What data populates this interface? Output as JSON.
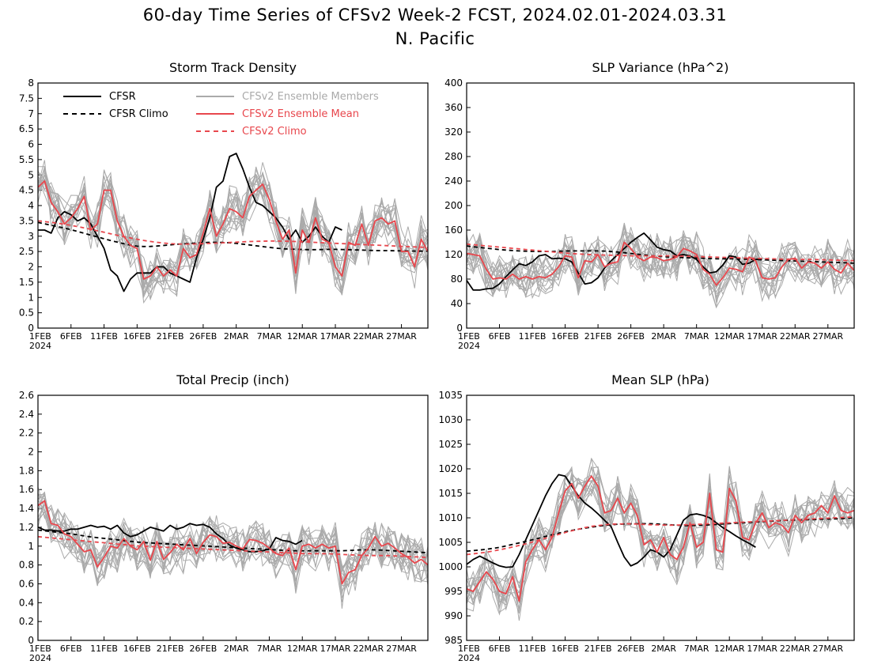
{
  "header": {
    "title": "60-day Time Series of CFSv2 Week-2 FCST, 2024.02.01-2024.03.31",
    "subtitle": "N. Pacific"
  },
  "legend": {
    "cfsr": "CFSR",
    "cfsr_climo": "CFSR Climo",
    "members": "CFSv2 Ensemble Members",
    "ens_mean": "CFSv2 Ensemble Mean",
    "cfsv2_climo": "CFSv2 Climo"
  },
  "colors": {
    "cfsr": "#000000",
    "members": "#aaaaaa",
    "ens_mean": "#e8474d",
    "cfsv2_climo": "#e8474d",
    "axis": "#000000"
  },
  "chart_data": [
    {
      "type": "line",
      "title": "Storm Track Density",
      "x_range": [
        "2024-02-01",
        "2024-03-31"
      ],
      "x_ticks": [
        "1FEB",
        "6FEB",
        "11FEB",
        "16FEB",
        "21FEB",
        "26FEB",
        "2MAR",
        "7MAR",
        "12MAR",
        "17MAR",
        "22MAR",
        "27MAR"
      ],
      "x_year_label": "2024",
      "ylim": [
        0,
        8
      ],
      "y_ticks": [
        "0",
        "0.5",
        "1",
        "1.5",
        "2",
        "2.5",
        "3",
        "3.5",
        "4",
        "4.5",
        "5",
        "5.5",
        "6",
        "6.5",
        "7",
        "7.5",
        "8"
      ],
      "series": [
        {
          "name": "CFSR",
          "style": "solid-black",
          "values": [
            3.2,
            3.2,
            3.1,
            3.6,
            3.8,
            3.7,
            3.5,
            3.6,
            3.4,
            3.0,
            2.6,
            1.9,
            1.7,
            1.2,
            1.6,
            1.8,
            1.8,
            1.8,
            2.0,
            2.0,
            1.8,
            1.7,
            1.6,
            1.5,
            2.3,
            2.9,
            3.6,
            4.6,
            4.8,
            5.6,
            5.7,
            5.2,
            4.6,
            4.1,
            4.0,
            3.8,
            3.6,
            3.3,
            2.9,
            3.2,
            2.8,
            3.0,
            3.3,
            3.0,
            2.8,
            3.3,
            3.2
          ]
        },
        {
          "name": "CFSR Climo",
          "style": "dashed-black",
          "values": [
            3.45,
            3.38,
            3.31,
            3.24,
            3.15,
            3.06,
            2.97,
            2.88,
            2.8,
            2.72,
            2.67,
            2.66,
            2.68,
            2.71,
            2.74,
            2.76,
            2.78,
            2.8,
            2.8,
            2.79,
            2.76,
            2.72,
            2.68,
            2.64,
            2.6,
            2.58,
            2.57,
            2.56,
            2.56,
            2.57,
            2.57,
            2.56,
            2.55,
            2.54,
            2.53,
            2.53,
            2.52,
            2.52,
            2.51,
            2.51
          ]
        },
        {
          "name": "CFSv2 Ensemble Mean",
          "style": "solid-red",
          "values": [
            4.6,
            4.8,
            4.1,
            3.8,
            3.4,
            3.6,
            3.9,
            4.3,
            3.2,
            3.4,
            4.5,
            4.5,
            3.5,
            3.0,
            2.7,
            2.6,
            1.6,
            1.7,
            2.0,
            1.7,
            1.9,
            1.7,
            2.6,
            2.3,
            2.4,
            3.1,
            3.9,
            3.0,
            3.4,
            3.9,
            3.8,
            3.6,
            4.3,
            4.5,
            4.7,
            4.2,
            3.5,
            2.9,
            3.2,
            1.8,
            3.2,
            2.8,
            3.6,
            2.9,
            2.8,
            2.0,
            1.7,
            2.8,
            2.7,
            3.4,
            2.7,
            3.5,
            3.6,
            3.4,
            3.5,
            2.5,
            2.5,
            2.0,
            2.9,
            2.5
          ]
        },
        {
          "name": "CFSv2 Climo",
          "style": "dashed-red",
          "values": [
            3.5,
            3.45,
            3.39,
            3.31,
            3.22,
            3.12,
            3.02,
            2.93,
            2.85,
            2.79,
            2.75,
            2.74,
            2.75,
            2.77,
            2.79,
            2.81,
            2.83,
            2.84,
            2.84,
            2.83,
            2.81,
            2.79,
            2.77,
            2.75,
            2.73,
            2.71,
            2.69,
            2.67,
            2.65,
            2.63
          ]
        }
      ]
    },
    {
      "type": "line",
      "title": "SLP Variance (hPa^2)",
      "x_range": [
        "2024-02-01",
        "2024-03-31"
      ],
      "x_ticks": [
        "1FEB",
        "6FEB",
        "11FEB",
        "16FEB",
        "21FEB",
        "26FEB",
        "2MAR",
        "7MAR",
        "12MAR",
        "17MAR",
        "22MAR",
        "27MAR"
      ],
      "x_year_label": "2024",
      "ylim": [
        0,
        400
      ],
      "y_ticks": [
        "0",
        "40",
        "80",
        "120",
        "160",
        "200",
        "240",
        "280",
        "320",
        "360",
        "400"
      ],
      "series": [
        {
          "name": "CFSR",
          "style": "solid-black",
          "values": [
            78,
            62,
            62,
            64,
            65,
            72,
            84,
            95,
            105,
            102,
            108,
            118,
            120,
            113,
            114,
            113,
            108,
            90,
            72,
            74,
            82,
            98,
            110,
            120,
            130,
            140,
            148,
            155,
            144,
            132,
            128,
            126,
            118,
            120,
            118,
            112,
            100,
            90,
            92,
            103,
            118,
            116,
            104,
            106,
            112,
            113
          ]
        },
        {
          "name": "CFSR Climo",
          "style": "dashed-black",
          "values": [
            134,
            131,
            128,
            126,
            125,
            125,
            126,
            126,
            126,
            124,
            121,
            118,
            116,
            115,
            114,
            113,
            113,
            112,
            111,
            110,
            109,
            108,
            107,
            106
          ]
        },
        {
          "name": "CFSv2 Ensemble Mean",
          "style": "solid-red",
          "values": [
            122,
            120,
            118,
            96,
            80,
            82,
            80,
            88,
            80,
            84,
            80,
            84,
            82,
            88,
            100,
            118,
            116,
            82,
            110,
            108,
            120,
            100,
            106,
            108,
            140,
            130,
            116,
            110,
            116,
            115,
            110,
            112,
            116,
            130,
            126,
            120,
            96,
            88,
            70,
            82,
            98,
            96,
            92,
            116,
            110,
            82,
            80,
            82,
            100,
            112,
            114,
            98,
            108,
            106,
            98,
            108,
            96,
            90,
            106,
            94
          ]
        },
        {
          "name": "CFSv2 Climo",
          "style": "dashed-red",
          "values": [
            137,
            134,
            131,
            128,
            125,
            122,
            120,
            119,
            118,
            118,
            118,
            117,
            116,
            115,
            114,
            113,
            112,
            112,
            111,
            110
          ]
        }
      ]
    },
    {
      "type": "line",
      "title": "Total Precip (inch)",
      "x_range": [
        "2024-02-01",
        "2024-03-31"
      ],
      "x_ticks": [
        "1FEB",
        "6FEB",
        "11FEB",
        "16FEB",
        "21FEB",
        "26FEB",
        "2MAR",
        "7MAR",
        "12MAR",
        "17MAR",
        "22MAR",
        "27MAR"
      ],
      "x_year_label": "2024",
      "ylim": [
        0,
        2.6
      ],
      "y_ticks": [
        "0",
        "0.2",
        "0.4",
        "0.6",
        "0.8",
        "1",
        "1.2",
        "1.4",
        "1.6",
        "1.8",
        "2",
        "2.2",
        "2.4",
        "2.6"
      ],
      "series": [
        {
          "name": "CFSR",
          "style": "solid-black",
          "values": [
            1.2,
            1.17,
            1.17,
            1.16,
            1.16,
            1.18,
            1.18,
            1.2,
            1.22,
            1.2,
            1.21,
            1.18,
            1.22,
            1.14,
            1.1,
            1.12,
            1.16,
            1.2,
            1.18,
            1.16,
            1.22,
            1.18,
            1.2,
            1.24,
            1.22,
            1.23,
            1.2,
            1.13,
            1.08,
            1.01,
            0.98,
            0.96,
            0.94,
            0.94,
            0.95,
            0.97,
            1.09,
            1.06,
            1.05,
            1.02,
            1.06
          ]
        },
        {
          "name": "CFSR Climo",
          "style": "dashed-black",
          "values": [
            1.17,
            1.15,
            1.13,
            1.1,
            1.08,
            1.06,
            1.04,
            1.03,
            1.02,
            1.01,
            1.0,
            0.99,
            0.98,
            0.97,
            0.96,
            0.95,
            0.95,
            0.95,
            0.95,
            0.96,
            0.96,
            0.95,
            0.94,
            0.93
          ]
        },
        {
          "name": "CFSv2 Ensemble Mean",
          "style": "solid-red",
          "values": [
            1.43,
            1.48,
            1.24,
            1.22,
            1.13,
            1.1,
            1.02,
            0.94,
            0.96,
            0.78,
            0.88,
            1.0,
            0.98,
            1.08,
            1.0,
            0.96,
            1.05,
            0.85,
            1.05,
            0.86,
            0.93,
            1.02,
            0.96,
            1.08,
            0.92,
            1.04,
            1.12,
            1.1,
            1.03,
            1.04,
            1.0,
            0.97,
            1.07,
            1.06,
            1.03,
            0.98,
            0.92,
            0.9,
            0.98,
            0.75,
            1.0,
            1.02,
            0.98,
            1.02,
            0.98,
            1.0,
            0.6,
            0.72,
            0.75,
            0.9,
            0.98,
            1.1,
            1.0,
            1.03,
            0.98,
            0.92,
            0.88,
            0.82,
            0.86,
            0.8
          ]
        },
        {
          "name": "CFSv2 Climo",
          "style": "dashed-red",
          "values": [
            1.1,
            1.08,
            1.06,
            1.04,
            1.02,
            1.0,
            0.99,
            0.98,
            0.97,
            0.96,
            0.95,
            0.94,
            0.93,
            0.92,
            0.92,
            0.91,
            0.9,
            0.9,
            0.89,
            0.88
          ]
        }
      ]
    },
    {
      "type": "line",
      "title": "Mean SLP (hPa)",
      "x_range": [
        "2024-02-01",
        "2024-03-31"
      ],
      "x_ticks": [
        "1FEB",
        "6FEB",
        "11FEB",
        "16FEB",
        "21FEB",
        "26FEB",
        "2MAR",
        "7MAR",
        "12MAR",
        "17MAR",
        "22MAR",
        "27MAR"
      ],
      "x_year_label": "2024",
      "ylim": [
        985,
        1035
      ],
      "y_ticks": [
        "985",
        "990",
        "995",
        "1000",
        "1005",
        "1010",
        "1015",
        "1020",
        "1025",
        "1030",
        "1035"
      ],
      "series": [
        {
          "name": "CFSR",
          "style": "solid-black",
          "values": [
            1000.5,
            1001.5,
            1002.2,
            1001.5,
            1000.8,
            1000.2,
            999.9,
            1000.0,
            1002.5,
            1005.5,
            1008.5,
            1011.5,
            1014.5,
            1017.0,
            1018.8,
            1018.5,
            1016.5,
            1014.5,
            1013.0,
            1012.0,
            1010.8,
            1009.5,
            1008.2,
            1005.0,
            1002.0,
            1000.2,
            1000.8,
            1002.0,
            1003.5,
            1003.0,
            1002.0,
            1003.5,
            1006.5,
            1009.5,
            1010.6,
            1010.8,
            1010.5,
            1010.0,
            1009.0,
            1008.0,
            1007.2,
            1006.3,
            1005.5,
            1004.8,
            1004.0
          ]
        },
        {
          "name": "CFSR Climo",
          "style": "dashed-black",
          "values": [
            1003.2,
            1003.5,
            1004.0,
            1004.8,
            1005.6,
            1006.5,
            1007.3,
            1007.9,
            1008.4,
            1008.7,
            1008.8,
            1008.8,
            1008.6,
            1008.4,
            1008.5,
            1008.7,
            1008.9,
            1009.1,
            1009.3,
            1009.5,
            1009.6,
            1009.7,
            1009.8,
            1010.0
          ]
        },
        {
          "name": "CFSv2 Ensemble Mean",
          "style": "solid-red",
          "values": [
            995.5,
            995.0,
            997.0,
            999.0,
            997.5,
            995.0,
            994.5,
            998.0,
            993.0,
            1001.0,
            1003.5,
            1005.5,
            1003.5,
            1006.0,
            1011.0,
            1015.5,
            1017.0,
            1014.0,
            1016.5,
            1018.5,
            1016.5,
            1011.0,
            1011.5,
            1014.0,
            1011.0,
            1013.0,
            1010.5,
            1004.5,
            1005.5,
            1003.0,
            1006.0,
            1002.5,
            1001.5,
            1004.0,
            1009.0,
            1004.0,
            1005.0,
            1015.0,
            1003.5,
            1003.0,
            1016.0,
            1013.5,
            1006.0,
            1005.5,
            1009.0,
            1011.0,
            1008.0,
            1009.0,
            1008.5,
            1007.0,
            1010.5,
            1009.0,
            1010.5,
            1011.0,
            1012.5,
            1011.0,
            1014.5,
            1011.5,
            1011.0,
            1011.5
          ]
        },
        {
          "name": "CFSv2 Climo",
          "style": "dashed-red",
          "values": [
            1002.5,
            1003.0,
            1003.8,
            1004.8,
            1006.0,
            1007.2,
            1008.2,
            1008.7,
            1008.8,
            1008.6,
            1008.5,
            1008.6,
            1008.8,
            1009.0,
            1009.2,
            1009.4,
            1009.6,
            1009.8,
            1010.0,
            1010.2
          ]
        }
      ]
    }
  ]
}
